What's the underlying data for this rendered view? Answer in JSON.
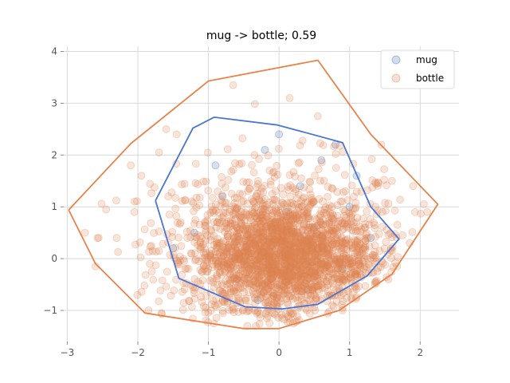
{
  "chart_data": {
    "type": "scatter",
    "title": "mug -> bottle; 0.59",
    "xlabel": "",
    "ylabel": "",
    "xlim": [
      -3.05,
      2.55
    ],
    "ylim": [
      -1.6,
      4.1
    ],
    "x_ticks": [
      -3,
      -2,
      -1,
      0,
      1,
      2
    ],
    "y_ticks": [
      -1,
      0,
      1,
      2,
      3,
      4
    ],
    "grid": true,
    "legend_position": "top-right",
    "series": [
      {
        "name": "mug",
        "color": "#4c72b0",
        "alpha": 0.22,
        "points": [
          [
            -0.4,
            0.3
          ],
          [
            0.2,
            -0.1
          ],
          [
            0.5,
            0.6
          ],
          [
            -0.9,
            1.8
          ],
          [
            0.8,
            2.2
          ],
          [
            -0.2,
            2.1
          ],
          [
            1.0,
            1.0
          ],
          [
            -1.2,
            0.5
          ],
          [
            0.3,
            1.4
          ],
          [
            -0.6,
            -0.4
          ],
          [
            0.9,
            -0.2
          ],
          [
            0.1,
            0.9
          ],
          [
            -0.3,
            -0.8
          ],
          [
            0.6,
            1.9
          ],
          [
            -1.5,
            0.2
          ],
          [
            1.3,
            0.4
          ],
          [
            0.0,
            2.4
          ],
          [
            -0.8,
            1.2
          ],
          [
            0.4,
            -0.6
          ],
          [
            1.1,
            1.6
          ]
        ],
        "hull": [
          [
            -1.75,
            1.12
          ],
          [
            -1.22,
            2.52
          ],
          [
            -0.92,
            2.73
          ],
          [
            -0.02,
            2.58
          ],
          [
            0.9,
            2.24
          ],
          [
            1.3,
            1.0
          ],
          [
            1.7,
            0.38
          ],
          [
            1.25,
            -0.33
          ],
          [
            0.55,
            -0.88
          ],
          [
            0.05,
            -0.97
          ],
          [
            -0.48,
            -0.93
          ],
          [
            -1.42,
            -0.38
          ],
          [
            -1.75,
            1.12
          ]
        ]
      },
      {
        "name": "bottle",
        "color": "#dd8452",
        "alpha": 0.22,
        "cluster": {
          "center": [
            0.05,
            0.05
          ],
          "core_sigma": [
            0.62,
            0.5
          ],
          "spread_sigma": [
            0.9,
            0.85
          ],
          "n_core": 1700,
          "n_spread": 900
        },
        "outliers": [
          [
            -2.75,
            0.5
          ],
          [
            -2.6,
            -0.15
          ],
          [
            -2.3,
            0.4
          ],
          [
            -2.05,
            0.9
          ],
          [
            -1.95,
            1.6
          ],
          [
            -1.85,
            -1.0
          ],
          [
            -1.7,
            2.05
          ],
          [
            -1.45,
            2.4
          ],
          [
            -0.65,
            3.35
          ],
          [
            0.15,
            3.1
          ],
          [
            0.55,
            2.75
          ],
          [
            1.45,
            2.2
          ],
          [
            1.6,
            1.5
          ],
          [
            1.9,
            1.4
          ],
          [
            2.1,
            0.9
          ],
          [
            1.85,
            0.3
          ],
          [
            1.55,
            -0.4
          ],
          [
            0.9,
            -1.0
          ],
          [
            0.2,
            -1.25
          ],
          [
            -0.45,
            -1.3
          ],
          [
            -1.6,
            2.5
          ],
          [
            -2.1,
            1.8
          ],
          [
            1.75,
            0.45
          ],
          [
            -1.35,
            -0.85
          ],
          [
            -2.45,
            0.95
          ]
        ],
        "hull": [
          [
            -2.98,
            0.94
          ],
          [
            -2.1,
            2.22
          ],
          [
            -1.0,
            3.43
          ],
          [
            0.55,
            3.83
          ],
          [
            1.3,
            2.4
          ],
          [
            2.25,
            1.05
          ],
          [
            1.6,
            -0.3
          ],
          [
            0.85,
            -1.0
          ],
          [
            0.0,
            -1.35
          ],
          [
            -0.5,
            -1.35
          ],
          [
            -1.9,
            -1.05
          ],
          [
            -2.6,
            -0.1
          ],
          [
            -2.98,
            0.94
          ]
        ]
      }
    ]
  }
}
